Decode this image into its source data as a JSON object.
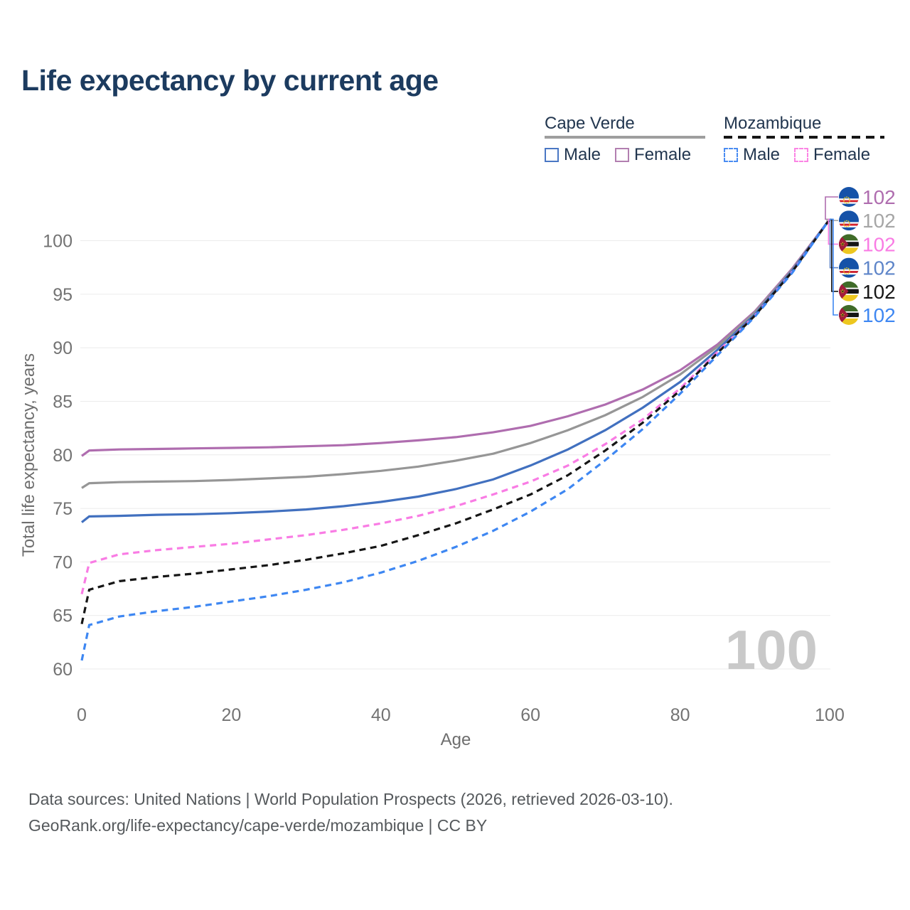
{
  "header": {
    "title": "Life expectancy by current age"
  },
  "legend": {
    "groups": [
      {
        "label": "Cape Verde",
        "line_style": "solid",
        "line_color": "#9e9e9e"
      },
      {
        "label": "Mozambique",
        "line_style": "dashed",
        "line_color": "#161616"
      }
    ],
    "items": [
      {
        "group": "Cape Verde",
        "label": "Male",
        "swatch_color": "#4a77c4",
        "swatch_style": "solid"
      },
      {
        "group": "Cape Verde",
        "label": "Female",
        "swatch_color": "#b27fb0",
        "swatch_style": "solid"
      },
      {
        "group": "Mozambique",
        "label": "Male",
        "swatch_color": "#4a8cf2",
        "swatch_style": "dashed"
      },
      {
        "group": "Mozambique",
        "label": "Female",
        "swatch_color": "#fb85e4",
        "swatch_style": "dashed"
      }
    ]
  },
  "chart_data": {
    "type": "line",
    "title": "Life expectancy by current age",
    "xlabel": "Age",
    "ylabel": "Total life expectancy, years",
    "xlim": [
      0,
      100
    ],
    "ylim": [
      58,
      104
    ],
    "xticks": [
      0,
      20,
      40,
      60,
      80,
      100
    ],
    "yticks": [
      60,
      65,
      70,
      75,
      80,
      85,
      90,
      95,
      100
    ],
    "grid": "horizontal-only",
    "legend_position": "top-right",
    "x": [
      0,
      1,
      5,
      10,
      15,
      20,
      25,
      30,
      35,
      40,
      45,
      50,
      55,
      60,
      65,
      70,
      75,
      80,
      85,
      90,
      95,
      100
    ],
    "series": [
      {
        "name": "Cape Verde Female",
        "country": "Cape Verde",
        "sex": "Female",
        "style": "solid",
        "color": "#af6daf",
        "end_value": 102,
        "values": [
          79.9,
          80.4,
          80.5,
          80.55,
          80.6,
          80.65,
          80.7,
          80.8,
          80.9,
          81.1,
          81.35,
          81.65,
          82.1,
          82.7,
          83.6,
          84.7,
          86.1,
          87.9,
          90.3,
          93.4,
          97.4,
          102
        ]
      },
      {
        "name": "Cape Verde Both sexes",
        "country": "Cape Verde",
        "sex": "Both",
        "style": "solid",
        "color": "#969696",
        "end_value": 102,
        "values": [
          76.9,
          77.35,
          77.45,
          77.5,
          77.55,
          77.65,
          77.8,
          77.95,
          78.2,
          78.5,
          78.9,
          79.45,
          80.1,
          81.1,
          82.3,
          83.7,
          85.4,
          87.5,
          90.1,
          93.3,
          97.3,
          102
        ]
      },
      {
        "name": "Cape Verde Male",
        "country": "Cape Verde",
        "sex": "Male",
        "style": "solid",
        "color": "#4170bf",
        "end_value": 102,
        "values": [
          73.7,
          74.25,
          74.3,
          74.4,
          74.45,
          74.55,
          74.7,
          74.9,
          75.2,
          75.6,
          76.1,
          76.8,
          77.7,
          79.0,
          80.5,
          82.3,
          84.4,
          86.8,
          89.8,
          93.1,
          97.2,
          102
        ]
      },
      {
        "name": "Mozambique Female",
        "country": "Mozambique",
        "sex": "Female",
        "style": "dashed",
        "color": "#f97ce4",
        "end_value": 102,
        "values": [
          67.0,
          69.9,
          70.7,
          71.1,
          71.4,
          71.7,
          72.1,
          72.5,
          73.0,
          73.6,
          74.3,
          75.2,
          76.3,
          77.5,
          79.0,
          81.0,
          83.3,
          86.2,
          89.6,
          93.0,
          97.1,
          102
        ]
      },
      {
        "name": "Mozambique Both sexes",
        "country": "Mozambique",
        "sex": "Both",
        "style": "dashed",
        "color": "#161616",
        "end_value": 102,
        "values": [
          64.2,
          67.4,
          68.2,
          68.6,
          68.9,
          69.3,
          69.7,
          70.2,
          70.8,
          71.5,
          72.5,
          73.6,
          74.9,
          76.3,
          78.1,
          80.4,
          83.0,
          86.0,
          89.5,
          93.0,
          97.1,
          102
        ]
      },
      {
        "name": "Mozambique Male",
        "country": "Mozambique",
        "sex": "Male",
        "style": "dashed",
        "color": "#3e87f2",
        "end_value": 102,
        "values": [
          60.8,
          64.1,
          64.9,
          65.4,
          65.8,
          66.3,
          66.8,
          67.4,
          68.1,
          69.0,
          70.1,
          71.4,
          72.9,
          74.7,
          76.8,
          79.5,
          82.4,
          85.7,
          89.3,
          92.9,
          97.0,
          102
        ]
      }
    ]
  },
  "endpoint_labels": [
    {
      "flag": "cape-verde",
      "value": "102",
      "color": "#af6daf"
    },
    {
      "flag": "cape-verde",
      "value": "102",
      "color": "#a6a6a6"
    },
    {
      "flag": "mozambique",
      "value": "102",
      "color": "#f97ce4"
    },
    {
      "flag": "cape-verde",
      "value": "102",
      "color": "#5e85c9"
    },
    {
      "flag": "mozambique",
      "value": "102",
      "color": "#161616"
    },
    {
      "flag": "mozambique",
      "value": "102",
      "color": "#3e87f2"
    }
  ],
  "watermark": {
    "text": "100"
  },
  "footer": {
    "line1": "Data sources: United Nations | World Population Prospects (2026, retrieved 2026-03-10).",
    "line2": "GeoRank.org/life-expectancy/cape-verde/mozambique | CC BY"
  }
}
